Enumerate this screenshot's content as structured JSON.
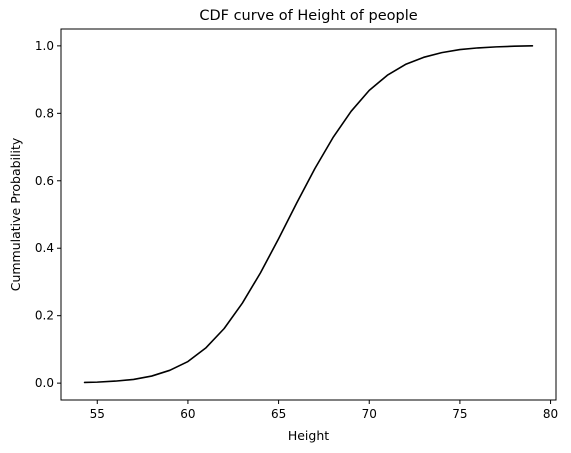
{
  "chart_data": {
    "type": "line",
    "title": "CDF curve of Height of people",
    "xlabel": "Height",
    "ylabel": "Cummulative Probability",
    "xlim": [
      53.0,
      80.3
    ],
    "ylim": [
      -0.05,
      1.05
    ],
    "xticks": [
      55,
      60,
      65,
      70,
      75,
      80
    ],
    "yticks": [
      0.0,
      0.2,
      0.4,
      0.6,
      0.8,
      1.0
    ],
    "xtick_labels": [
      "55",
      "60",
      "65",
      "70",
      "75",
      "80"
    ],
    "ytick_labels": [
      "0.0",
      "0.2",
      "0.4",
      "0.6",
      "0.8",
      "1.0"
    ],
    "grid": false,
    "line_color": "#000000",
    "series": [
      {
        "x": [
          54.3,
          55.0,
          56.0,
          57.0,
          58.0,
          59.0,
          60.0,
          61.0,
          62.0,
          63.0,
          64.0,
          65.0,
          66.0,
          67.0,
          68.0,
          69.0,
          70.0,
          71.0,
          72.0,
          73.0,
          74.0,
          75.0,
          76.0,
          77.0,
          78.0,
          79.0
        ],
        "y": [
          0.002,
          0.003,
          0.006,
          0.011,
          0.021,
          0.038,
          0.064,
          0.105,
          0.162,
          0.237,
          0.327,
          0.428,
          0.534,
          0.636,
          0.728,
          0.806,
          0.868,
          0.913,
          0.945,
          0.966,
          0.98,
          0.989,
          0.994,
          0.997,
          0.999,
          1.0
        ]
      }
    ]
  }
}
